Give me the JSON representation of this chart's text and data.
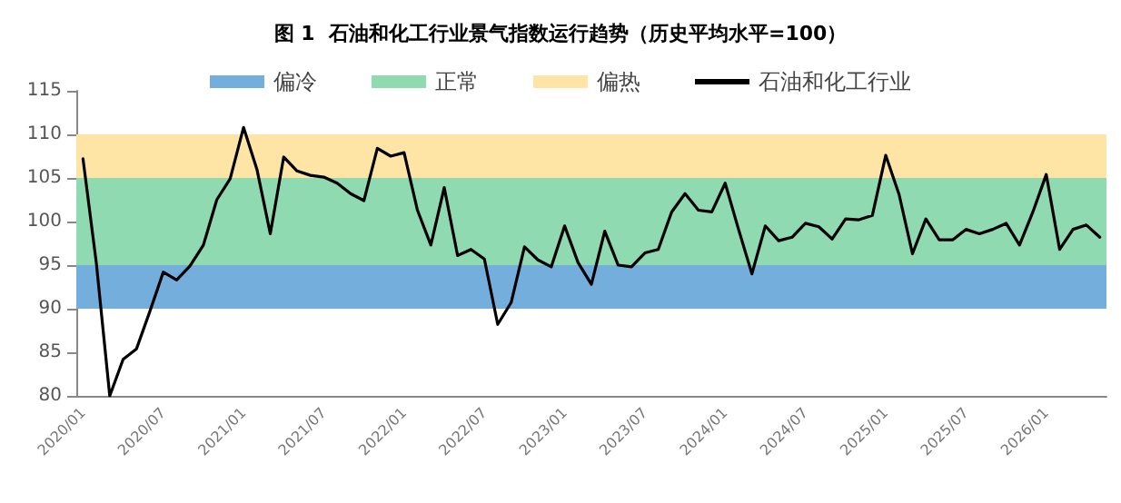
{
  "chart_data": {
    "type": "line",
    "title": "图 1  石油和化工行业景气指数运行趋势（历史平均水平=100）",
    "categories": [
      "2020/01",
      null,
      null,
      null,
      null,
      null,
      "2020/07",
      null,
      null,
      null,
      null,
      null,
      "2021/01",
      null,
      null,
      null,
      null,
      null,
      "2021/07",
      null,
      null,
      null,
      null,
      null,
      "2022/01",
      null,
      null,
      null,
      null,
      null,
      "2022/07",
      null,
      null,
      null,
      null,
      null,
      "2023/01",
      null,
      null,
      null,
      null,
      null,
      "2023/07",
      null,
      null,
      null,
      null,
      null,
      "2024/01",
      null,
      null,
      null,
      null,
      null,
      "2024/07",
      null,
      null,
      null,
      null,
      null,
      "2025/01",
      null,
      null,
      null,
      null,
      null,
      "2025/07",
      null,
      null,
      null,
      null,
      null,
      "2026/01",
      null,
      null,
      null,
      null
    ],
    "series": [
      {
        "name": "石油和化工行业",
        "color": "#000000",
        "values": [
          107.2,
          95.2,
          80,
          84.2,
          85.4,
          89.7,
          94.2,
          93.3,
          94.9,
          97.3,
          102.5,
          104.9,
          110.8,
          106.0,
          98.6,
          107.4,
          105.8,
          105.3,
          105.1,
          104.4,
          103.2,
          102.4,
          108.4,
          107.5,
          107.9,
          101.3,
          97.3,
          103.9,
          96.1,
          96.8,
          95.7,
          88.2,
          90.7,
          97.1,
          95.6,
          94.8,
          99.5,
          95.3,
          92.8,
          98.9,
          95.0,
          94.8,
          96.4,
          96.8,
          101.1,
          103.2,
          101.3,
          101.1,
          104.4,
          99.1,
          94.0,
          99.5,
          97.8,
          98.2,
          99.8,
          99.4,
          98.0,
          100.3,
          100.2,
          100.7,
          107.6,
          103.1,
          96.3,
          100.3,
          97.9,
          97.9,
          99.1,
          98.6,
          99.1,
          99.8,
          97.3,
          101.1,
          105.4,
          96.8,
          99.1,
          99.6,
          98.2
        ]
      }
    ],
    "bands": [
      {
        "axis": "y",
        "from": 90,
        "to": 95,
        "label": "偏冷",
        "color": "#74aedd"
      },
      {
        "axis": "y",
        "from": 95,
        "to": 105,
        "label": "正常",
        "color": "#8fdab0"
      },
      {
        "axis": "y",
        "from": 105,
        "to": 110,
        "label": "偏热",
        "color": "#fee5a6"
      }
    ],
    "ylim": [
      80,
      115
    ],
    "yticks": [
      80,
      85,
      90,
      95,
      100,
      105,
      110,
      115
    ],
    "grid": false,
    "legend": "top",
    "marker": "none",
    "line_style": "solid"
  }
}
